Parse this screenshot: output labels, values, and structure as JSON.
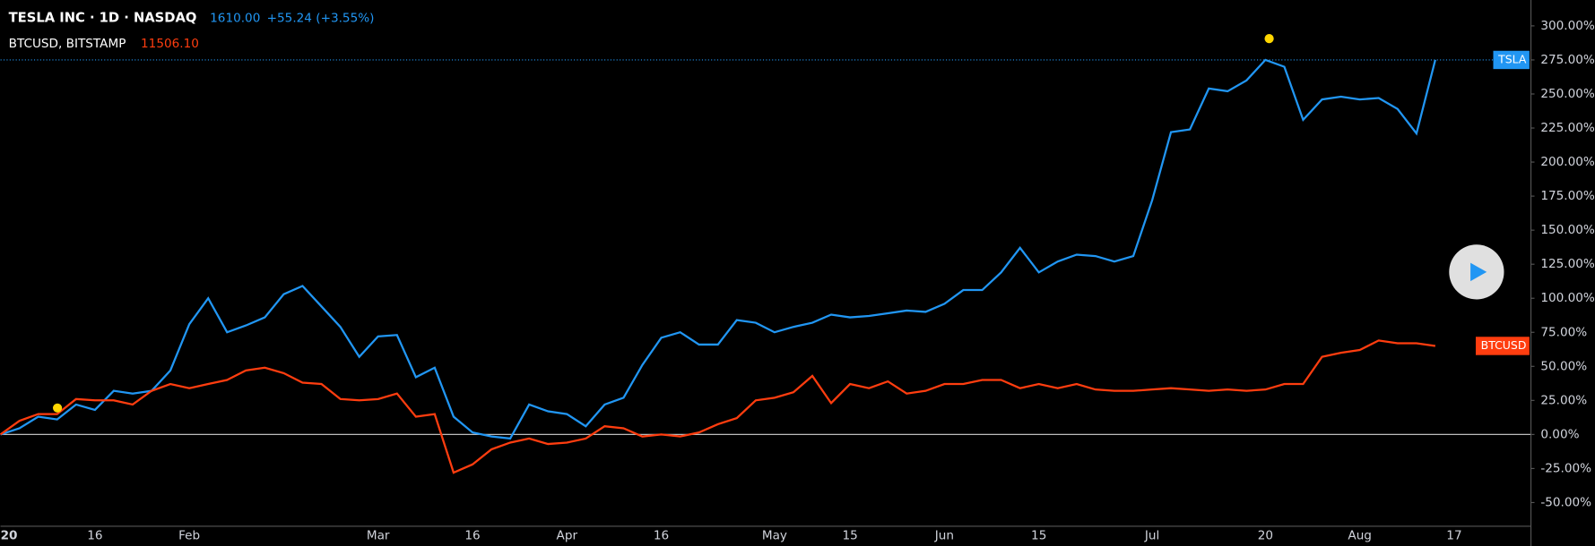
{
  "chart_data": {
    "type": "line",
    "title": "TESLA INC · 1D · NASDAQ",
    "price": "1610.00",
    "change": "+55.24 (+3.55%)",
    "subtitle": "BTCUSD, BITSTAMP",
    "subtitle_price": "11506.10",
    "categories": [
      "20",
      null,
      null,
      null,
      null,
      "16",
      null,
      null,
      null,
      null,
      "Feb",
      null,
      null,
      null,
      null,
      null,
      null,
      null,
      null,
      null,
      "Mar",
      null,
      null,
      null,
      null,
      "16",
      null,
      null,
      null,
      null,
      "Apr",
      null,
      null,
      null,
      null,
      "16",
      null,
      null,
      null,
      null,
      null,
      "May",
      null,
      null,
      null,
      "15",
      null,
      null,
      null,
      null,
      "Jun",
      null,
      null,
      null,
      null,
      "15",
      null,
      null,
      null,
      null,
      null,
      "Jul",
      null,
      null,
      null,
      null,
      null,
      "20",
      null,
      null,
      null,
      null,
      "Aug",
      null,
      null,
      null,
      null,
      "17"
    ],
    "series": [
      {
        "name": "TSLA",
        "color": "#2196f3",
        "values": [
          0,
          4.5,
          13,
          11,
          22,
          18,
          32,
          30,
          32,
          47,
          81,
          100,
          75,
          80,
          86,
          103,
          109,
          94,
          79,
          57,
          72,
          73,
          42,
          49,
          13,
          1.5,
          -1.5,
          -3,
          22,
          17,
          15,
          6,
          22,
          27,
          51,
          71,
          75,
          66,
          66,
          84,
          82,
          75,
          79,
          82,
          88,
          86,
          87,
          89,
          91,
          90,
          96,
          106,
          106,
          119,
          137,
          119,
          127,
          132,
          131,
          127,
          131,
          172,
          222,
          224,
          254,
          252,
          260,
          275,
          270,
          231,
          246,
          248,
          246,
          247,
          239,
          221,
          275,
          null
        ]
      },
      {
        "name": "BTCUSD",
        "color": "#ff3d0f",
        "values": [
          0,
          10,
          15,
          15,
          26,
          25,
          25,
          22,
          32,
          37,
          34,
          37,
          40,
          47,
          49,
          45,
          38,
          37,
          26,
          25,
          26,
          30,
          13,
          15,
          -28,
          -22,
          -11,
          -6,
          -3,
          -7,
          -6,
          -3,
          6,
          4.5,
          -1.5,
          0,
          -1.5,
          1.5,
          7.5,
          12,
          25,
          27,
          31,
          43,
          23,
          37,
          34,
          39,
          30,
          32,
          37,
          37,
          40,
          40,
          34,
          37,
          34,
          37,
          33,
          32,
          32,
          33,
          34,
          33,
          32,
          33,
          32,
          33,
          37,
          37,
          57,
          60,
          62,
          69,
          67,
          67,
          65,
          null
        ]
      }
    ],
    "ylim": [
      -67,
      319
    ],
    "yticks": [
      {
        "value": -50,
        "label": "-50.00%"
      },
      {
        "value": -25,
        "label": "-25.00%"
      },
      {
        "value": 0,
        "label": "0.00%"
      },
      {
        "value": 25,
        "label": "25.00%"
      },
      {
        "value": 50,
        "label": "50.00%"
      },
      {
        "value": 75,
        "label": "75.00%"
      },
      {
        "value": 100,
        "label": "100.00%"
      },
      {
        "value": 125,
        "label": "125.00%"
      },
      {
        "value": 150,
        "label": "150.00%"
      },
      {
        "value": 175,
        "label": "175.00%"
      },
      {
        "value": 200,
        "label": "200.00%"
      },
      {
        "value": 225,
        "label": "225.00%"
      },
      {
        "value": 250,
        "label": "250.00%"
      },
      {
        "value": 275,
        "label": "275.00%"
      },
      {
        "value": 300,
        "label": "300.00%"
      }
    ]
  }
}
